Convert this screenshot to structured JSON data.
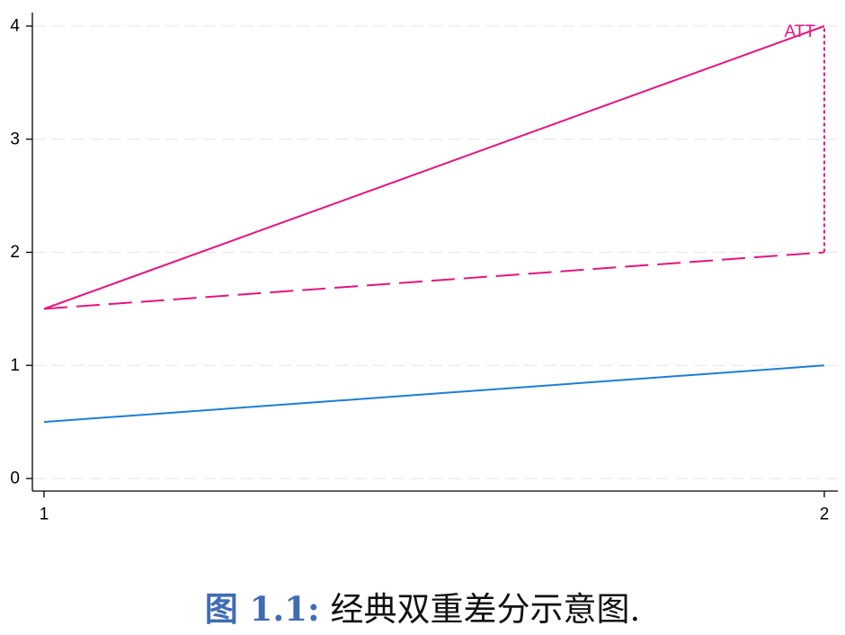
{
  "chart_data": {
    "type": "line",
    "x": [
      1,
      2
    ],
    "xlim": [
      1,
      2
    ],
    "ylim": [
      0,
      4
    ],
    "xticks": [
      1,
      2
    ],
    "yticks": [
      0,
      1,
      2,
      3,
      4
    ],
    "grid": "horizontal dashed",
    "series": [
      {
        "x": [
          1,
          2
        ],
        "values": [
          1.5,
          4
        ],
        "color": "#E8137F",
        "style": "solid"
      },
      {
        "x": [
          1,
          2
        ],
        "values": [
          1.5,
          2
        ],
        "color": "#E8137F",
        "style": "dashed"
      },
      {
        "x": [
          1,
          2
        ],
        "values": [
          0.5,
          1
        ],
        "color": "#1A7FD6",
        "style": "solid"
      }
    ],
    "annotations": [
      {
        "text": "ATT",
        "x": 2,
        "y_from": 2,
        "y_to": 4,
        "color": "#E8137F",
        "style": "dotted"
      }
    ]
  },
  "caption": {
    "label": "图 1.1:",
    "text": " 经典双重差分示意图."
  },
  "colors": {
    "treated": "#E8137F",
    "control": "#1A7FD6",
    "caption_label": "#3F6CB4"
  }
}
